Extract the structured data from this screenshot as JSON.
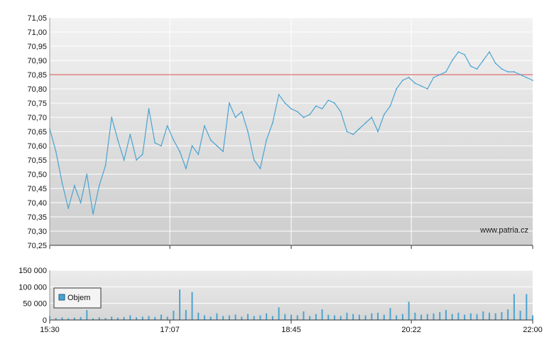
{
  "chart_data": [
    {
      "type": "line",
      "title": "",
      "xlabel": "",
      "ylabel": "",
      "x_ticks": [
        "15:30",
        "17:07",
        "18:45",
        "20:22",
        "22:00"
      ],
      "y_ticks": [
        "70,25",
        "70,30",
        "70,35",
        "70,40",
        "70,45",
        "70,50",
        "70,55",
        "70,60",
        "70,65",
        "70,70",
        "70,75",
        "70,80",
        "70,85",
        "70,90",
        "70,95",
        "71,00",
        "71,05"
      ],
      "ylim": [
        70.25,
        71.05
      ],
      "reference_line": 70.85,
      "grid": true,
      "watermark": "www.patria.cz",
      "series": [
        {
          "x": [
            "15:30",
            "15:35",
            "15:40",
            "15:45",
            "15:50",
            "15:55",
            "16:00",
            "16:05",
            "16:10",
            "16:15",
            "16:20",
            "16:25",
            "16:30",
            "16:35",
            "16:40",
            "16:45",
            "16:50",
            "16:55",
            "17:00",
            "17:05",
            "17:10",
            "17:15",
            "17:20",
            "17:25",
            "17:30",
            "17:35",
            "17:40",
            "17:45",
            "17:50",
            "17:55",
            "18:00",
            "18:05",
            "18:10",
            "18:15",
            "18:20",
            "18:25",
            "18:30",
            "18:35",
            "18:40",
            "18:45",
            "18:50",
            "18:55",
            "19:00",
            "19:05",
            "19:10",
            "19:15",
            "19:20",
            "19:25",
            "19:30",
            "19:35",
            "19:40",
            "19:45",
            "19:50",
            "19:55",
            "20:00",
            "20:05",
            "20:10",
            "20:15",
            "20:20",
            "20:25",
            "20:30",
            "20:35",
            "20:40",
            "20:45",
            "20:50",
            "20:55",
            "21:00",
            "21:05",
            "21:10",
            "21:15",
            "21:20",
            "21:25",
            "21:30",
            "21:35",
            "21:40",
            "21:45",
            "21:50",
            "21:55",
            "22:00"
          ],
          "y": [
            70.66,
            70.58,
            70.47,
            70.38,
            70.46,
            70.4,
            70.5,
            70.36,
            70.46,
            70.53,
            70.7,
            70.62,
            70.55,
            70.64,
            70.55,
            70.57,
            70.73,
            70.61,
            70.6,
            70.67,
            70.62,
            70.58,
            70.52,
            70.6,
            70.57,
            70.67,
            70.62,
            70.6,
            70.58,
            70.75,
            70.7,
            70.72,
            70.65,
            70.55,
            70.52,
            70.62,
            70.68,
            70.78,
            70.75,
            70.73,
            70.72,
            70.7,
            70.71,
            70.74,
            70.73,
            70.76,
            70.75,
            70.72,
            70.65,
            70.64,
            70.66,
            70.68,
            70.7,
            70.65,
            70.71,
            70.74,
            70.8,
            70.83,
            70.84,
            70.82,
            70.81,
            70.8,
            70.84,
            70.85,
            70.86,
            70.9,
            70.93,
            70.92,
            70.88,
            70.87,
            70.9,
            70.93,
            70.89,
            70.87,
            70.86,
            70.86,
            70.85,
            70.84,
            70.83
          ]
        }
      ]
    },
    {
      "type": "bar",
      "title": "",
      "xlabel": "",
      "ylabel": "",
      "legend": [
        "Objem"
      ],
      "legend_position": "top-left",
      "x_ticks": [
        "15:30",
        "17:07",
        "18:45",
        "20:22",
        "22:00"
      ],
      "y_ticks": [
        "0",
        "50 000",
        "100 000",
        "150 000"
      ],
      "ylim": [
        0,
        150000
      ],
      "grid": true,
      "series": [
        {
          "name": "Objem",
          "x": [
            "15:30",
            "15:35",
            "15:40",
            "15:45",
            "15:50",
            "15:55",
            "16:00",
            "16:05",
            "16:10",
            "16:15",
            "16:20",
            "16:25",
            "16:30",
            "16:35",
            "16:40",
            "16:45",
            "16:50",
            "16:55",
            "17:00",
            "17:05",
            "17:10",
            "17:15",
            "17:20",
            "17:25",
            "17:30",
            "17:35",
            "17:40",
            "17:45",
            "17:50",
            "17:55",
            "18:00",
            "18:05",
            "18:10",
            "18:15",
            "18:20",
            "18:25",
            "18:30",
            "18:35",
            "18:40",
            "18:45",
            "18:50",
            "18:55",
            "19:00",
            "19:05",
            "19:10",
            "19:15",
            "19:20",
            "19:25",
            "19:30",
            "19:35",
            "19:40",
            "19:45",
            "19:50",
            "19:55",
            "20:00",
            "20:05",
            "20:10",
            "20:15",
            "20:20",
            "20:25",
            "20:30",
            "20:35",
            "20:40",
            "20:45",
            "20:50",
            "20:55",
            "21:00",
            "21:05",
            "21:10",
            "21:15",
            "21:20",
            "21:25",
            "21:30",
            "21:35",
            "21:40",
            "21:45",
            "21:50",
            "21:55",
            "22:00"
          ],
          "values": [
            12000,
            6000,
            8000,
            5000,
            7000,
            9000,
            30000,
            5000,
            8000,
            6000,
            10000,
            7000,
            9000,
            14000,
            8000,
            10000,
            12000,
            9000,
            16000,
            10000,
            28000,
            92000,
            30000,
            84000,
            22000,
            14000,
            10000,
            20000,
            12000,
            14000,
            16000,
            10000,
            18000,
            12000,
            14000,
            20000,
            12000,
            38000,
            18000,
            16000,
            14000,
            26000,
            12000,
            18000,
            32000,
            16000,
            14000,
            12000,
            22000,
            18000,
            16000,
            14000,
            20000,
            22000,
            16000,
            36000,
            14000,
            18000,
            55000,
            22000,
            16000,
            18000,
            20000,
            24000,
            30000,
            18000,
            22000,
            16000,
            20000,
            18000,
            26000,
            22000,
            20000,
            24000,
            32000,
            78000,
            28000,
            78000,
            14000
          ]
        }
      ]
    }
  ]
}
